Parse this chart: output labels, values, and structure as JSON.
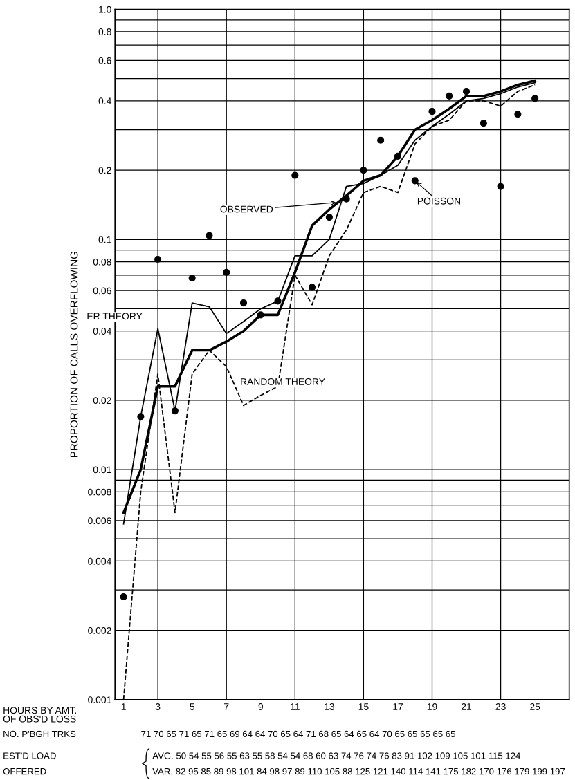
{
  "chart_data": {
    "type": "line",
    "xlabel": "HOURS BY AMT.\nOF OBS'D LOSS",
    "ylabel": "PROPORTION OF CALLS OVERFLOWING",
    "x": [
      1,
      2,
      3,
      4,
      5,
      6,
      7,
      8,
      9,
      10,
      11,
      12,
      13,
      14,
      15,
      16,
      17,
      18,
      19,
      20,
      21,
      22,
      23,
      24,
      25
    ],
    "series": [
      {
        "color": "#000000",
        "line_style": "solid",
        "values": [
          0.0065,
          0.01,
          0.023,
          0.023,
          0.033,
          0.033,
          0.036,
          0.04,
          0.047,
          0.047,
          0.072,
          0.115,
          0.135,
          0.155,
          0.18,
          0.19,
          0.23,
          0.3,
          0.33,
          0.37,
          0.42,
          0.42,
          0.44,
          0.47,
          0.49
        ]
      },
      {
        "color": "#000000",
        "line_style": "solid",
        "values": [
          0.0058,
          0.017,
          0.041,
          0.018,
          0.053,
          0.051,
          0.039,
          0.044,
          0.05,
          0.054,
          0.085,
          0.085,
          0.1,
          0.17,
          0.175,
          0.19,
          0.21,
          0.27,
          0.31,
          0.35,
          0.4,
          0.41,
          0.43,
          0.46,
          0.48
        ]
      },
      {
        "color": "#000000",
        "line_style": "dashed",
        "values": [
          0.001,
          0.008,
          0.026,
          0.0065,
          0.026,
          0.033,
          0.028,
          0.019,
          0.021,
          0.023,
          0.07,
          0.052,
          0.085,
          0.11,
          0.16,
          0.17,
          0.16,
          0.26,
          0.31,
          0.33,
          0.4,
          0.4,
          0.38,
          0.44,
          0.47
        ]
      },
      {
        "type": "scatter",
        "color": "#000000",
        "marker": "circle",
        "values": [
          0.0028,
          0.017,
          0.082,
          0.018,
          0.068,
          0.104,
          0.072,
          0.053,
          0.047,
          0.054,
          0.19,
          0.062,
          0.125,
          0.15,
          0.2,
          0.27,
          0.23,
          0.18,
          0.36,
          0.42,
          0.44,
          0.32,
          0.17,
          0.35,
          0.41
        ]
      }
    ],
    "log": "y",
    "xlim": [
      0.5,
      27
    ],
    "ylim": [
      0.001,
      1
    ],
    "xticks": [
      1,
      3,
      5,
      7,
      9,
      11,
      13,
      15,
      17,
      19,
      21,
      23,
      25
    ],
    "yticks": [
      0.001,
      0.002,
      {
        "value": 0.003,
        "label": null
      },
      0.004,
      {
        "value": 0.005,
        "label": null
      },
      0.006,
      {
        "value": 0.007,
        "label": null
      },
      0.008,
      {
        "value": 0.009,
        "label": null
      },
      0.01,
      0.02,
      {
        "value": 0.03,
        "label": null
      },
      0.04,
      {
        "value": 0.05,
        "label": null
      },
      0.06,
      {
        "value": 0.07,
        "label": null
      },
      0.08,
      {
        "value": 0.09,
        "label": null
      },
      0.1,
      0.2,
      {
        "value": 0.3,
        "label": null
      },
      0.4,
      {
        "value": 0.5,
        "label": null
      },
      0.6,
      {
        "value": 0.7,
        "label": null
      },
      0.8,
      {
        "value": 0.9,
        "label": null
      },
      {
        "value": 1,
        "label": "1.0"
      }
    ],
    "grid": "y",
    "ref_lines": [
      {
        "axis": "x",
        "value": 3
      },
      {
        "axis": "x",
        "value": 7
      },
      {
        "axis": "x",
        "value": 11
      },
      {
        "axis": "x",
        "value": 15
      },
      {
        "axis": "x",
        "value": 19
      },
      {
        "axis": "x",
        "value": 23
      }
    ],
    "annotations": [
      {
        "text": "OBSERVED",
        "x": 13.5,
        "y": 0.145
      },
      {
        "text": "POISSON",
        "x": 18,
        "y": 0.18
      },
      {
        "text": "ER THEORY",
        "x": 3,
        "y": 0.041
      },
      {
        "text": "RANDOM THEORY",
        "x": 10,
        "y": 0.023
      },
      "NO. P'BGH TRKS",
      "71 70 65 71 65 71 65 69 64 64 70 65 64 71 68 65 64 65 64 70 65 65 65 65 65",
      "EST'D LOAD",
      "OFFERED",
      "AVG. 50 54 55 56 55 63 55 58 54 54 68 60 63 74 76 74 76 83 91 102 109 105 101 115 124",
      "VAR. 82 95 85 89 98 101 84 98 97 89 110 105 88 125 121 140 114 141 175 182 170 176 179 199 197"
    ]
  }
}
